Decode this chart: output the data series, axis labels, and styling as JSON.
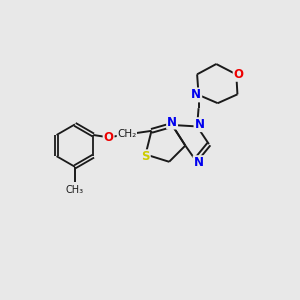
{
  "background_color": "#e8e8e8",
  "bond_color": "#1a1a1a",
  "atom_colors": {
    "N": "#0000ee",
    "S": "#cccc00",
    "O": "#ee0000",
    "C": "#1a1a1a"
  },
  "font_size_atom": 8.5,
  "font_size_small": 7.5
}
